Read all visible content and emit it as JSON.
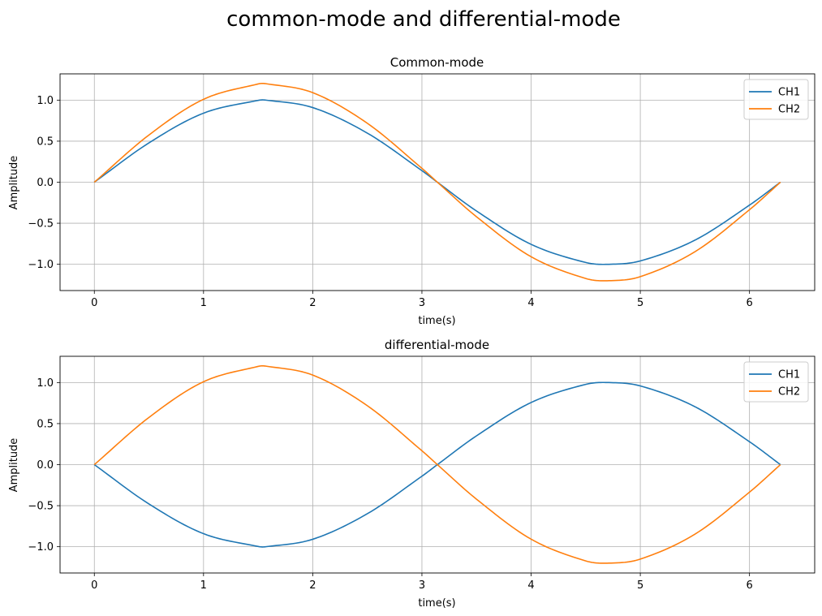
{
  "suptitle": "common-mode and differential-mode",
  "colors": {
    "CH1": "#1f77b4",
    "CH2": "#ff7f0e",
    "grid": "#b0b0b0"
  },
  "chart_data": [
    {
      "type": "line",
      "title": "Common-mode",
      "xlabel": "time(s)",
      "ylabel": "Amplitude",
      "xlim": [
        -0.314,
        6.597
      ],
      "ylim": [
        -1.32,
        1.32
      ],
      "xticks": [
        0,
        1,
        2,
        3,
        4,
        5,
        6
      ],
      "xtick_labels": [
        "0",
        "1",
        "2",
        "3",
        "4",
        "5",
        "6"
      ],
      "yticks": [
        -1.0,
        -0.5,
        0.0,
        0.5,
        1.0
      ],
      "ytick_labels": [
        "−1.0",
        "−0.5",
        "0.0",
        "0.5",
        "1.0"
      ],
      "grid": true,
      "legend_position": "top-right",
      "x": [
        0,
        0.5,
        1,
        1.5,
        1.5708,
        2,
        2.5,
        3,
        3.1416,
        3.5,
        4,
        4.5,
        4.7124,
        5,
        5.5,
        6,
        6.2832
      ],
      "series": [
        {
          "name": "CH1",
          "color": "#1f77b4",
          "values": [
            0,
            0.479,
            0.841,
            0.997,
            1.0,
            0.909,
            0.598,
            0.141,
            0,
            -0.351,
            -0.757,
            -0.978,
            -1.0,
            -0.959,
            -0.706,
            -0.279,
            0
          ]
        },
        {
          "name": "CH2",
          "color": "#ff7f0e",
          "values": [
            0,
            0.575,
            1.01,
            1.197,
            1.2,
            1.091,
            0.718,
            0.169,
            0,
            -0.421,
            -0.908,
            -1.173,
            -1.2,
            -1.151,
            -0.847,
            -0.335,
            0
          ]
        }
      ]
    },
    {
      "type": "line",
      "title": "differential-mode",
      "xlabel": "time(s)",
      "ylabel": "Amplitude",
      "xlim": [
        -0.314,
        6.597
      ],
      "ylim": [
        -1.32,
        1.32
      ],
      "xticks": [
        0,
        1,
        2,
        3,
        4,
        5,
        6
      ],
      "xtick_labels": [
        "0",
        "1",
        "2",
        "3",
        "4",
        "5",
        "6"
      ],
      "yticks": [
        -1.0,
        -0.5,
        0.0,
        0.5,
        1.0
      ],
      "ytick_labels": [
        "−1.0",
        "−0.5",
        "0.0",
        "0.5",
        "1.0"
      ],
      "grid": true,
      "legend_position": "top-right",
      "x": [
        0,
        0.5,
        1,
        1.5,
        1.5708,
        2,
        2.5,
        3,
        3.1416,
        3.5,
        4,
        4.5,
        4.7124,
        5,
        5.5,
        6,
        6.2832
      ],
      "series": [
        {
          "name": "CH1",
          "color": "#1f77b4",
          "values": [
            0,
            -0.479,
            -0.841,
            -0.997,
            -1.0,
            -0.909,
            -0.598,
            -0.141,
            0,
            0.351,
            0.757,
            0.978,
            1.0,
            0.959,
            0.706,
            0.279,
            0
          ]
        },
        {
          "name": "CH2",
          "color": "#ff7f0e",
          "values": [
            0,
            0.575,
            1.01,
            1.197,
            1.2,
            1.091,
            0.718,
            0.169,
            0,
            -0.421,
            -0.908,
            -1.173,
            -1.2,
            -1.151,
            -0.847,
            -0.335,
            0
          ]
        }
      ]
    }
  ]
}
